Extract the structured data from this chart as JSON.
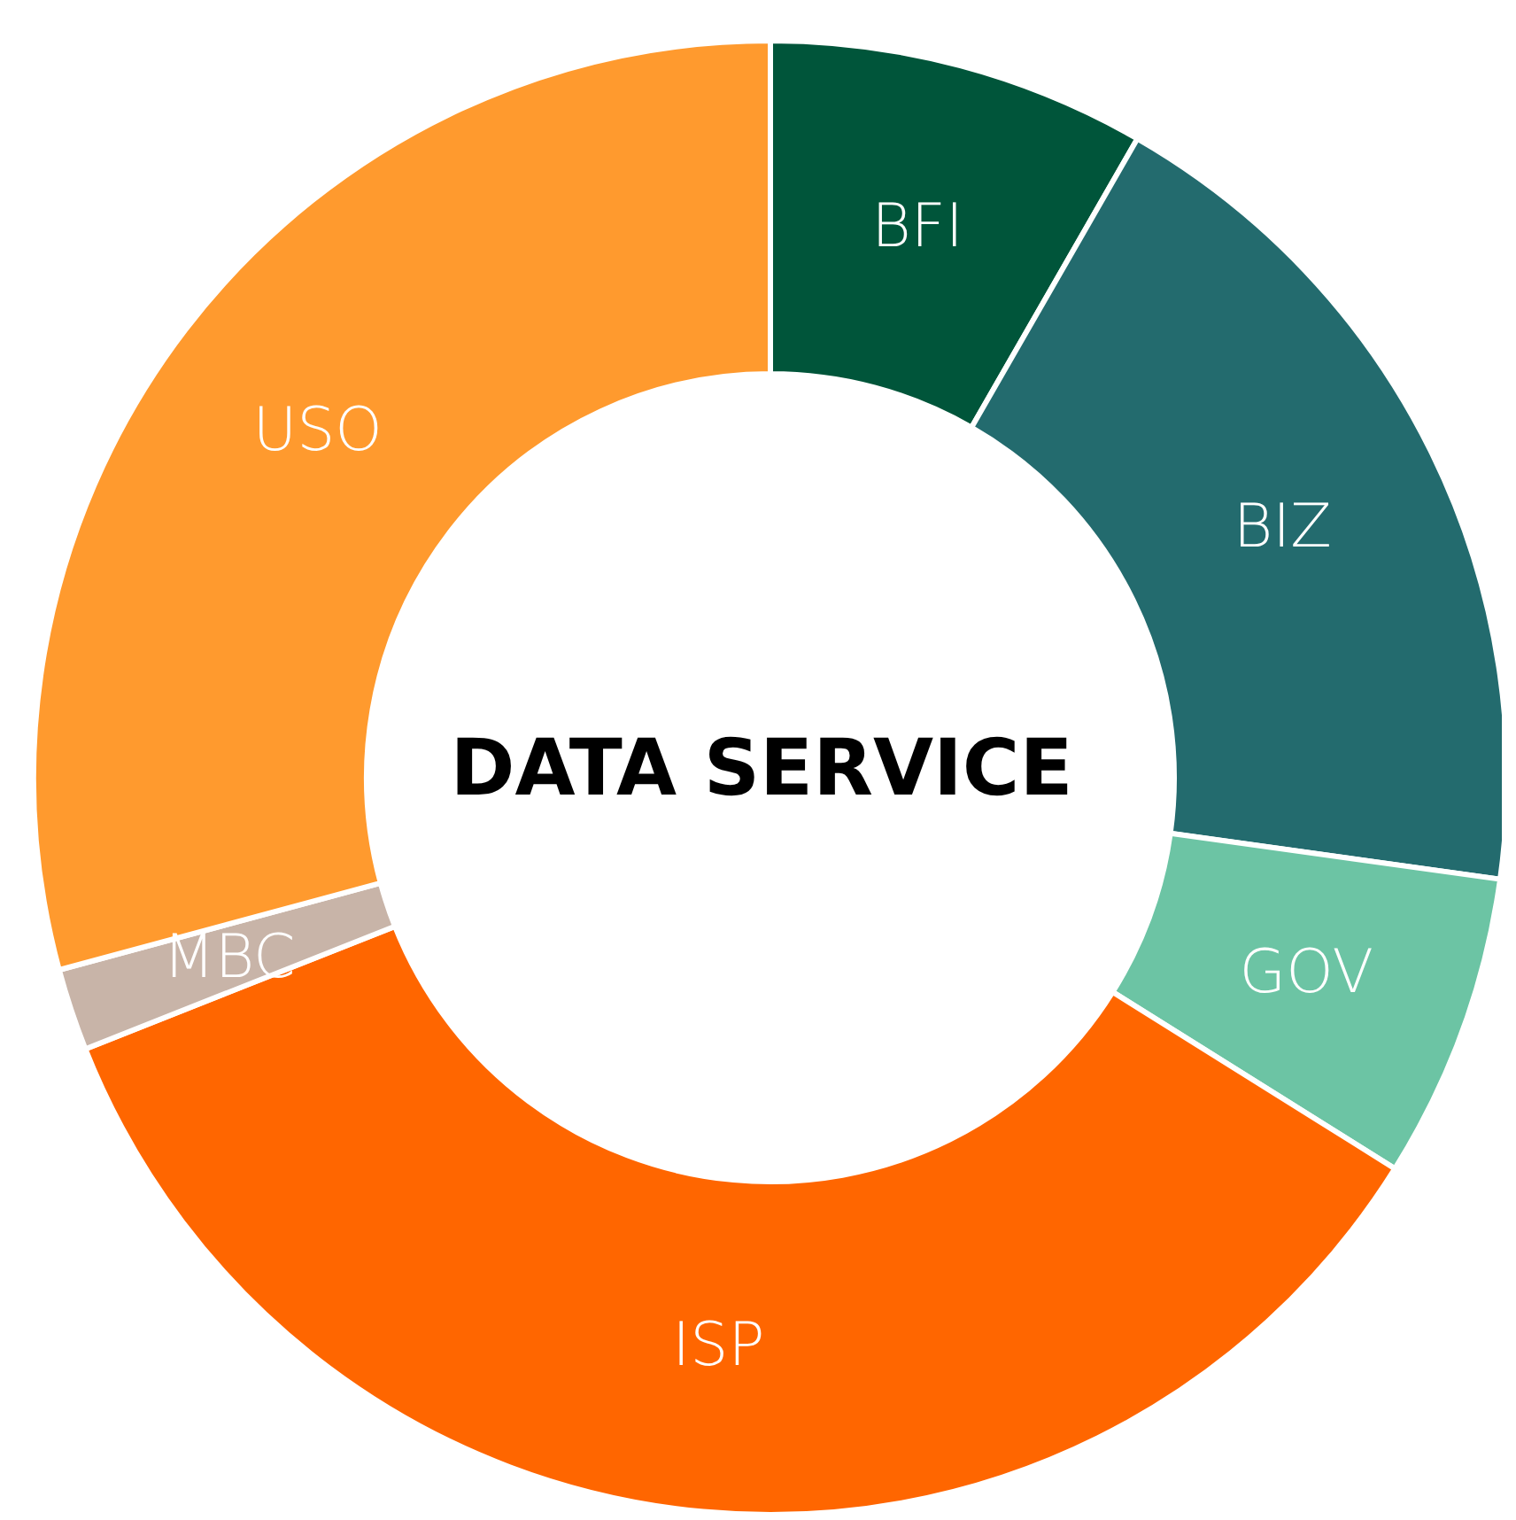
{
  "chart_data": {
    "type": "donut",
    "title": "DATA SERVICE",
    "categories": [
      "BFI",
      "BIZ",
      "GOV",
      "ISP",
      "MBC",
      "USO"
    ],
    "values": [
      8.3,
      18.9,
      6.7,
      35.1,
      1.8,
      29.2
    ],
    "colors": [
      "#00553a",
      "#236b6e",
      "#6cc4a4",
      "#ff6600",
      "#c8b4a8",
      "#ff9a2e"
    ]
  }
}
